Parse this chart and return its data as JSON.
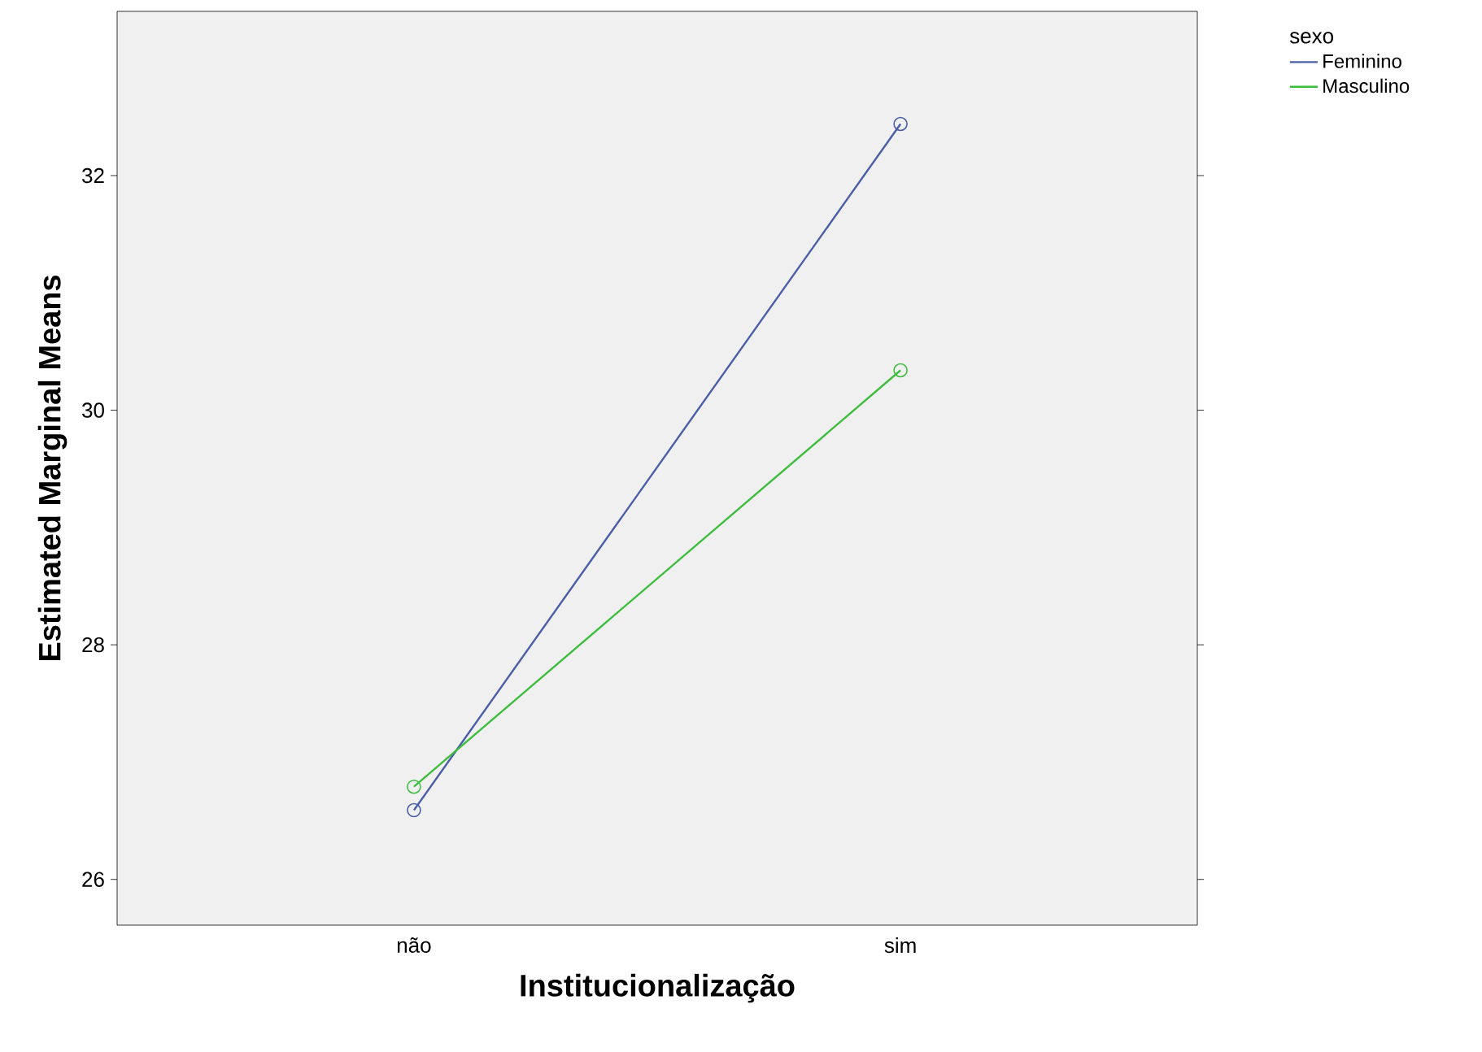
{
  "chart_data": {
    "type": "line",
    "xlabel": "Institucionalização",
    "ylabel": "Estimated Marginal Means",
    "legend_title": "sexo",
    "categories": [
      "não",
      "sim"
    ],
    "series": [
      {
        "name": "Feminino",
        "color": "#4a5ea8",
        "values": [
          26.59,
          32.44
        ]
      },
      {
        "name": "Masculino",
        "color": "#3dbd3d",
        "values": [
          26.79,
          30.34
        ]
      }
    ],
    "ylim": [
      25.61,
      33.4
    ],
    "yticks": [
      26,
      28,
      30,
      32
    ],
    "marker": "circle",
    "line_style": "solid",
    "grid": false,
    "legend": "top right"
  }
}
